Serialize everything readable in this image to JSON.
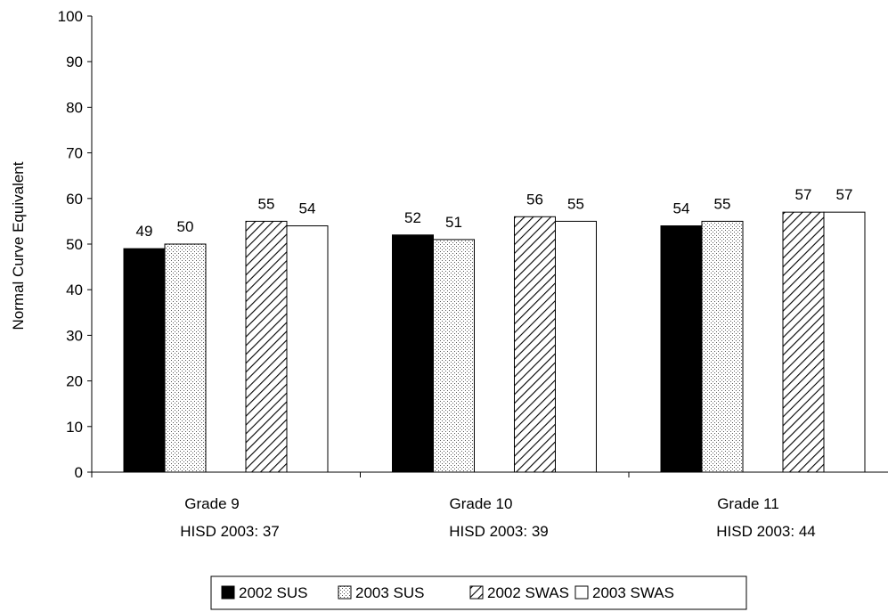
{
  "chart_data": {
    "type": "bar",
    "title": "",
    "xlabel": "",
    "ylabel": "Normal Curve Equivalent",
    "ylim": [
      0,
      100
    ],
    "yticks": [
      0,
      10,
      20,
      30,
      40,
      50,
      60,
      70,
      80,
      90,
      100
    ],
    "categories": [
      {
        "line1": "Grade 9",
        "line2": "HISD 2003: 37"
      },
      {
        "line1": "Grade 10",
        "line2": "HISD 2003: 39"
      },
      {
        "line1": "Grade 11",
        "line2": "HISD 2003: 44"
      }
    ],
    "series": [
      {
        "name": "2002 SUS",
        "pattern": "solid-black",
        "values": [
          49,
          52,
          54
        ]
      },
      {
        "name": "2003 SUS",
        "pattern": "dots",
        "values": [
          50,
          51,
          55
        ]
      },
      {
        "name": "2002 SWAS",
        "pattern": "diagonal-hatch",
        "values": [
          55,
          56,
          57
        ]
      },
      {
        "name": "2003 SWAS",
        "pattern": "white",
        "values": [
          54,
          55,
          57
        ]
      }
    ],
    "data_labels": true,
    "grid": false,
    "legend": "bottom"
  }
}
